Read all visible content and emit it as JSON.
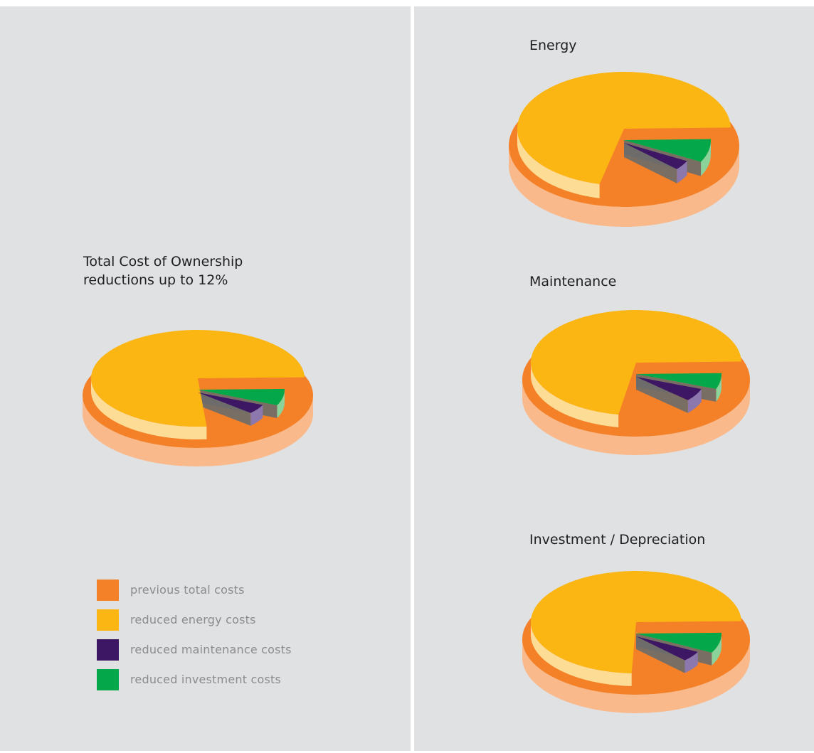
{
  "colors": {
    "previous_total": "#f48127",
    "previous_total_side": "#f9b98b",
    "energy": "#fbb614",
    "energy_side": "#fddd96",
    "maintenance": "#3e1764",
    "maintenance_side": "#8d78ae",
    "investment": "#04a84b",
    "investment_side": "#8bd29b",
    "cut_face": "#6c6c6c",
    "panel_bg": "#e0e1e3"
  },
  "legend": [
    {
      "label": "previous total costs",
      "color": "#f48127"
    },
    {
      "label": "reduced energy costs",
      "color": "#fbb614"
    },
    {
      "label": "reduced maintenance costs",
      "color": "#3e1764"
    },
    {
      "label": "reduced investment costs",
      "color": "#04a84b"
    }
  ],
  "chart_data": [
    {
      "type": "pie",
      "title": "Total Cost of Ownership reductions up to 12%",
      "title_lines": [
        "Total Cost of Ownership",
        "reductions up to 12%"
      ],
      "base": "previous total costs",
      "slices": [
        {
          "label": "reduced energy costs",
          "value": 76
        },
        {
          "label": "reduced maintenance costs",
          "value": 5
        },
        {
          "label": "reduced investment costs",
          "value": 7
        },
        {
          "label": "previous total costs",
          "value": 12
        }
      ]
    },
    {
      "type": "pie",
      "title": "Energy",
      "base": "previous total costs",
      "slices": [
        {
          "label": "reduced energy costs",
          "value": 71
        },
        {
          "label": "reduced maintenance costs",
          "value": 4
        },
        {
          "label": "reduced investment costs",
          "value": 8
        },
        {
          "label": "previous total costs",
          "value": 17
        }
      ]
    },
    {
      "type": "pie",
      "title": "Maintenance",
      "base": "previous total costs",
      "slices": [
        {
          "label": "reduced energy costs",
          "value": 72
        },
        {
          "label": "reduced maintenance costs",
          "value": 6
        },
        {
          "label": "reduced investment costs",
          "value": 6
        },
        {
          "label": "previous total costs",
          "value": 16
        }
      ]
    },
    {
      "type": "pie",
      "title": "Investment / Depreciation",
      "base": "previous total costs",
      "slices": [
        {
          "label": "reduced energy costs",
          "value": 74
        },
        {
          "label": "reduced maintenance costs",
          "value": 5
        },
        {
          "label": "reduced investment costs",
          "value": 8
        },
        {
          "label": "previous total costs",
          "value": 13
        }
      ]
    }
  ]
}
